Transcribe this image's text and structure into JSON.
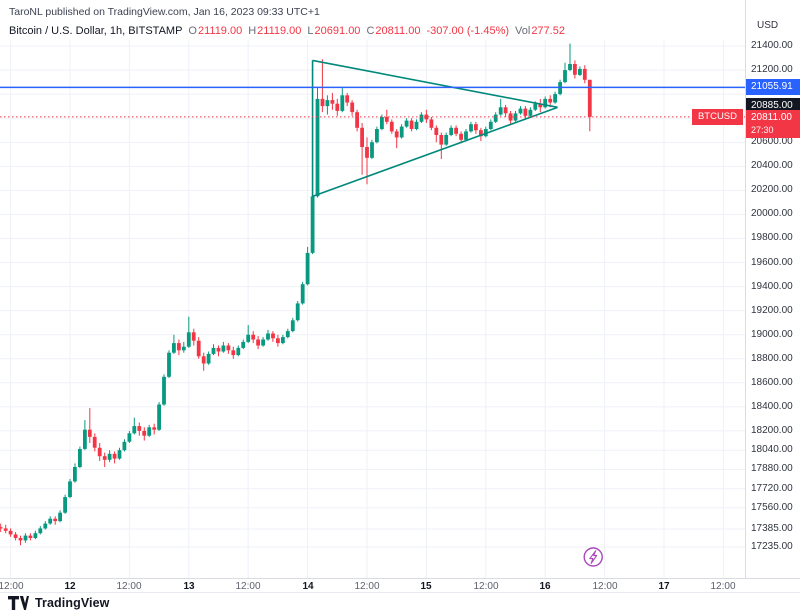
{
  "attribution": "TaroNL published on TradingView.com, Jan 16, 2023 09:33 UTC+1",
  "legend": {
    "symbol": "Bitcoin / U.S. Dollar, 1h, BITSTAMP",
    "ohlc": [
      {
        "label": "O",
        "value": "21119.00"
      },
      {
        "label": "H",
        "value": "21119.00"
      },
      {
        "label": "L",
        "value": "20691.00"
      },
      {
        "label": "C",
        "value": "20811.00"
      }
    ],
    "change": "-307.00 (-1.45%)",
    "vol_label": "Vol",
    "vol_value": "277.52"
  },
  "price_axis": {
    "currency": "USD",
    "ticks": [
      {
        "price": 21400,
        "label": "21400.00"
      },
      {
        "price": 21200,
        "label": "21200.00"
      },
      {
        "price": 20600,
        "label": "20600.00"
      },
      {
        "price": 20400,
        "label": "20400.00"
      },
      {
        "price": 20200,
        "label": "20200.00"
      },
      {
        "price": 20000,
        "label": "20000.00"
      },
      {
        "price": 19800,
        "label": "19800.00"
      },
      {
        "price": 19600,
        "label": "19600.00"
      },
      {
        "price": 19400,
        "label": "19400.00"
      },
      {
        "price": 19200,
        "label": "19200.00"
      },
      {
        "price": 19000,
        "label": "19000.00"
      },
      {
        "price": 18800,
        "label": "18800.00"
      },
      {
        "price": 18600,
        "label": "18600.00"
      },
      {
        "price": 18400,
        "label": "18400.00"
      },
      {
        "price": 18200,
        "label": "18200.00"
      },
      {
        "price": 18040,
        "label": "18040.00"
      },
      {
        "price": 17880,
        "label": "17880.00"
      },
      {
        "price": 17720,
        "label": "17720.00"
      },
      {
        "price": 17560,
        "label": "17560.00"
      },
      {
        "price": 17385,
        "label": "17385.00"
      },
      {
        "price": 17235,
        "label": "17235.00"
      }
    ],
    "badges": {
      "hline": {
        "price": 21055.91,
        "label": "21055.91",
        "bg": "#2962ff"
      },
      "drawing": {
        "price": 20885.0,
        "label": "20885.00",
        "bg": "#131722"
      },
      "last": {
        "price": 20811.0,
        "symbol": "BTCUSD",
        "label": "20811.00",
        "countdown": "27:30",
        "bg": "#f23645"
      }
    }
  },
  "time_axis": {
    "ticks": [
      {
        "hour": 2,
        "label": "12:00",
        "major": false
      },
      {
        "hour": 14,
        "label": "12",
        "major": true
      },
      {
        "hour": 26,
        "label": "12:00",
        "major": false
      },
      {
        "hour": 38,
        "label": "13",
        "major": true
      },
      {
        "hour": 50,
        "label": "12:00",
        "major": false
      },
      {
        "hour": 62,
        "label": "14",
        "major": true
      },
      {
        "hour": 74,
        "label": "12:00",
        "major": false
      },
      {
        "hour": 86,
        "label": "15",
        "major": true
      },
      {
        "hour": 98,
        "label": "12:00",
        "major": false
      },
      {
        "hour": 110,
        "label": "16",
        "major": true
      },
      {
        "hour": 122,
        "label": "12:00",
        "major": false
      },
      {
        "hour": 134,
        "label": "17",
        "major": true
      },
      {
        "hour": 146,
        "label": "12:00",
        "major": false
      }
    ]
  },
  "chart_data": {
    "type": "candlestick",
    "title": "Bitcoin / U.S. Dollar",
    "symbol": "BTCUSD",
    "exchange": "BITSTAMP",
    "interval": "1h",
    "start": "2023-01-11 10:00",
    "step_hours": 1,
    "columns": [
      "open",
      "high",
      "low",
      "close"
    ],
    "ylim": [
      17130,
      21460
    ],
    "grid_prices": [
      21400,
      21200,
      21000,
      20800,
      20600,
      20400,
      20200,
      20000,
      19800,
      19600,
      19400,
      19200,
      19000,
      18800,
      18600,
      18400,
      18200,
      18040,
      17880,
      17720,
      17560,
      17385,
      17235
    ],
    "up_color": "#089981",
    "down_color": "#f23645",
    "last_bar": {
      "open": 21119.0,
      "high": 21119.0,
      "low": 20691.0,
      "close": 20811.0,
      "change": -307.0,
      "change_pct": -1.45,
      "volume": 277.52
    },
    "candles": [
      [
        17400,
        17430,
        17360,
        17390
      ],
      [
        17390,
        17420,
        17350,
        17370
      ],
      [
        17370,
        17390,
        17320,
        17340
      ],
      [
        17340,
        17360,
        17290,
        17310
      ],
      [
        17310,
        17330,
        17250,
        17290
      ],
      [
        17290,
        17350,
        17270,
        17330
      ],
      [
        17330,
        17350,
        17290,
        17310
      ],
      [
        17310,
        17370,
        17300,
        17350
      ],
      [
        17350,
        17410,
        17340,
        17390
      ],
      [
        17390,
        17450,
        17380,
        17430
      ],
      [
        17430,
        17490,
        17420,
        17470
      ],
      [
        17470,
        17490,
        17420,
        17450
      ],
      [
        17450,
        17540,
        17440,
        17520
      ],
      [
        17520,
        17670,
        17510,
        17650
      ],
      [
        17650,
        17800,
        17640,
        17780
      ],
      [
        17780,
        17930,
        17770,
        17900
      ],
      [
        17900,
        18070,
        17890,
        18050
      ],
      [
        18050,
        18290,
        18040,
        18210
      ],
      [
        18210,
        18390,
        18100,
        18150
      ],
      [
        18150,
        18180,
        18030,
        18060
      ],
      [
        18060,
        18100,
        17950,
        17990
      ],
      [
        17990,
        18020,
        17900,
        17960
      ],
      [
        17960,
        18040,
        17940,
        18010
      ],
      [
        18010,
        18030,
        17930,
        17970
      ],
      [
        17970,
        18060,
        17960,
        18040
      ],
      [
        18040,
        18130,
        18030,
        18110
      ],
      [
        18110,
        18200,
        18100,
        18180
      ],
      [
        18180,
        18310,
        18170,
        18240
      ],
      [
        18240,
        18270,
        18160,
        18200
      ],
      [
        18200,
        18230,
        18120,
        18160
      ],
      [
        18160,
        18250,
        18150,
        18230
      ],
      [
        18230,
        18260,
        18170,
        18210
      ],
      [
        18210,
        18440,
        18200,
        18420
      ],
      [
        18420,
        18670,
        18410,
        18650
      ],
      [
        18650,
        18870,
        18640,
        18850
      ],
      [
        18850,
        19000,
        18840,
        18930
      ],
      [
        18930,
        18960,
        18830,
        18870
      ],
      [
        18870,
        18940,
        18850,
        18900
      ],
      [
        18900,
        19150,
        18890,
        19020
      ],
      [
        19020,
        19050,
        18910,
        18950
      ],
      [
        18950,
        18980,
        18800,
        18820
      ],
      [
        18820,
        18850,
        18700,
        18760
      ],
      [
        18760,
        18860,
        18750,
        18840
      ],
      [
        18840,
        18920,
        18830,
        18890
      ],
      [
        18890,
        18910,
        18820,
        18860
      ],
      [
        18860,
        18940,
        18850,
        18910
      ],
      [
        18910,
        18930,
        18840,
        18870
      ],
      [
        18870,
        18900,
        18800,
        18830
      ],
      [
        18830,
        18910,
        18820,
        18890
      ],
      [
        18890,
        18960,
        18880,
        18940
      ],
      [
        18940,
        19080,
        18930,
        19000
      ],
      [
        19000,
        19030,
        18930,
        18960
      ],
      [
        18960,
        18990,
        18880,
        18910
      ],
      [
        18910,
        18980,
        18900,
        18960
      ],
      [
        18960,
        19040,
        18950,
        19010
      ],
      [
        19010,
        19030,
        18940,
        18970
      ],
      [
        18970,
        19000,
        18900,
        18930
      ],
      [
        18930,
        19000,
        18920,
        18980
      ],
      [
        18980,
        19050,
        18970,
        19030
      ],
      [
        19030,
        19140,
        19020,
        19120
      ],
      [
        19120,
        19280,
        19110,
        19260
      ],
      [
        19260,
        19440,
        19250,
        19420
      ],
      [
        19420,
        19730,
        19410,
        19680
      ],
      [
        19680,
        20180,
        19670,
        20150
      ],
      [
        20150,
        21060,
        20140,
        20960
      ],
      [
        20960,
        21290,
        20850,
        20900
      ],
      [
        20900,
        20990,
        20830,
        20950
      ],
      [
        20950,
        21010,
        20870,
        20920
      ],
      [
        20920,
        20960,
        20820,
        20860
      ],
      [
        20860,
        21050,
        20850,
        20990
      ],
      [
        20990,
        21010,
        20900,
        20930
      ],
      [
        20930,
        20950,
        20820,
        20850
      ],
      [
        20850,
        20870,
        20690,
        20720
      ],
      [
        20720,
        20760,
        20330,
        20560
      ],
      [
        20560,
        20640,
        20250,
        20470
      ],
      [
        20470,
        20620,
        20460,
        20600
      ],
      [
        20600,
        20730,
        20590,
        20710
      ],
      [
        20710,
        20830,
        20700,
        20810
      ],
      [
        20810,
        20870,
        20750,
        20770
      ],
      [
        20770,
        20790,
        20670,
        20690
      ],
      [
        20690,
        20710,
        20550,
        20640
      ],
      [
        20640,
        20750,
        20630,
        20730
      ],
      [
        20730,
        20800,
        20720,
        20780
      ],
      [
        20780,
        20800,
        20690,
        20710
      ],
      [
        20710,
        20790,
        20700,
        20770
      ],
      [
        20770,
        20850,
        20760,
        20830
      ],
      [
        20830,
        20870,
        20760,
        20790
      ],
      [
        20790,
        20810,
        20700,
        20720
      ],
      [
        20720,
        20740,
        20600,
        20660
      ],
      [
        20660,
        20680,
        20460,
        20580
      ],
      [
        20580,
        20680,
        20570,
        20660
      ],
      [
        20660,
        20740,
        20650,
        20720
      ],
      [
        20720,
        20740,
        20650,
        20670
      ],
      [
        20670,
        20690,
        20590,
        20620
      ],
      [
        20620,
        20710,
        20610,
        20690
      ],
      [
        20690,
        20770,
        20680,
        20750
      ],
      [
        20750,
        20770,
        20670,
        20700
      ],
      [
        20700,
        20720,
        20610,
        20650
      ],
      [
        20650,
        20730,
        20640,
        20710
      ],
      [
        20710,
        20790,
        20700,
        20770
      ],
      [
        20770,
        20850,
        20760,
        20830
      ],
      [
        20830,
        20960,
        20820,
        20890
      ],
      [
        20890,
        20910,
        20810,
        20840
      ],
      [
        20840,
        20860,
        20750,
        20780
      ],
      [
        20780,
        20860,
        20770,
        20840
      ],
      [
        20840,
        20900,
        20830,
        20880
      ],
      [
        20880,
        20900,
        20790,
        20820
      ],
      [
        20820,
        20890,
        20810,
        20870
      ],
      [
        20870,
        20940,
        20860,
        20920
      ],
      [
        20920,
        20960,
        20850,
        20890
      ],
      [
        20890,
        20980,
        20880,
        20960
      ],
      [
        20960,
        20990,
        20890,
        20930
      ],
      [
        20930,
        21020,
        20920,
        21000
      ],
      [
        21000,
        21120,
        20990,
        21100
      ],
      [
        21100,
        21260,
        21090,
        21200
      ],
      [
        21200,
        21420,
        21190,
        21250
      ],
      [
        21250,
        21280,
        21130,
        21160
      ],
      [
        21160,
        21230,
        21150,
        21210
      ],
      [
        21210,
        21240,
        21090,
        21119
      ],
      [
        21119,
        21119,
        20691,
        20811
      ]
    ]
  },
  "overlays": {
    "horizontal_line": {
      "price": 21055.91,
      "color": "#2962ff"
    },
    "last_price_line": {
      "price": 20811.0,
      "color": "#f23645",
      "style": "dotted"
    },
    "pennant": {
      "color": "#00897b",
      "start_hour": 63,
      "top_price": 21280,
      "bottom_price": 20150,
      "apex_hour": 112.5,
      "apex_price": 20890
    },
    "flash_icon": {
      "color": "#ab47bc",
      "hour": 119.7
    }
  },
  "footer": {
    "brand": "TradingView"
  }
}
